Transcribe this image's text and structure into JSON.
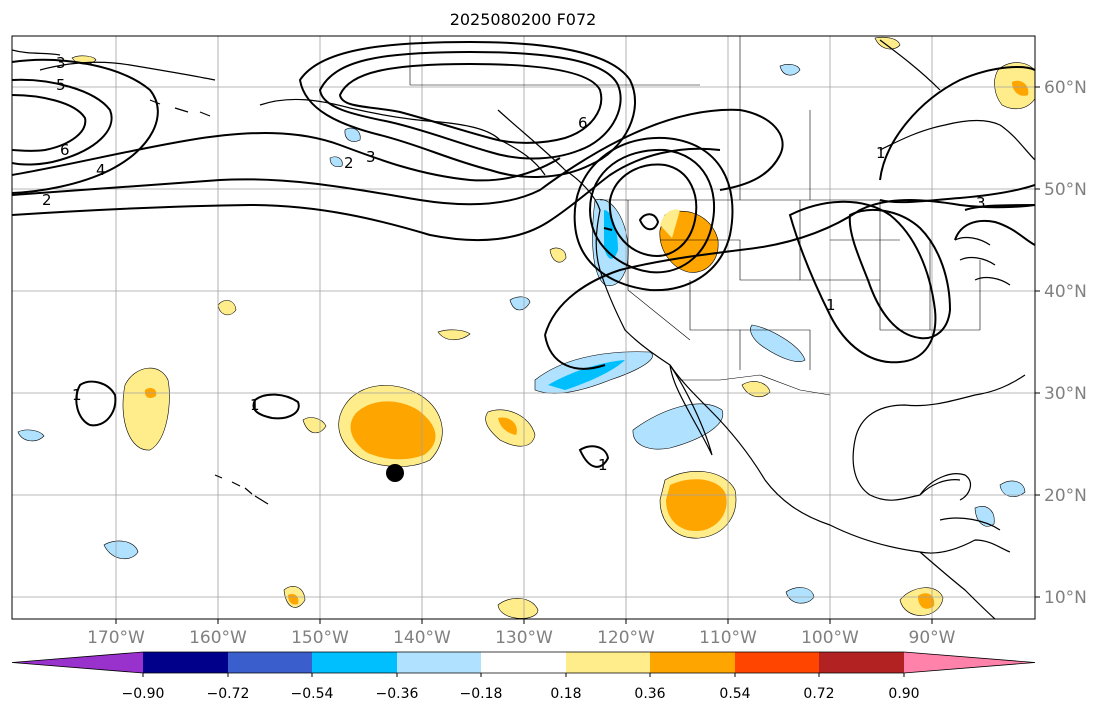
{
  "title": "2025080200 F072",
  "lon_labels": [
    "170°W",
    "160°W",
    "150°W",
    "140°W",
    "130°W",
    "120°W",
    "110°W",
    "100°W",
    "90°W"
  ],
  "lat_labels": [
    "60°N",
    "50°N",
    "40°N",
    "30°N",
    "20°N",
    "10°N"
  ],
  "colorbar": {
    "colors": [
      "#9932cc",
      "#00008b",
      "#3a5fcd",
      "#00bfff",
      "#b0e2ff",
      "#ffffff",
      "#ffec8b",
      "#ffa500",
      "#ff4500",
      "#b22222",
      "#ff82ab"
    ],
    "tick_labels": [
      "−0.90",
      "−0.72",
      "−0.54",
      "−0.36",
      "−0.18",
      "0.18",
      "0.36",
      "0.54",
      "0.72",
      "0.90"
    ]
  },
  "contour_labels": [
    "3",
    "5",
    "6",
    "4",
    "2",
    "2",
    "3",
    "6",
    "1",
    "3",
    "1",
    "1",
    "1",
    "1"
  ],
  "marker": "storm-position-dot"
}
